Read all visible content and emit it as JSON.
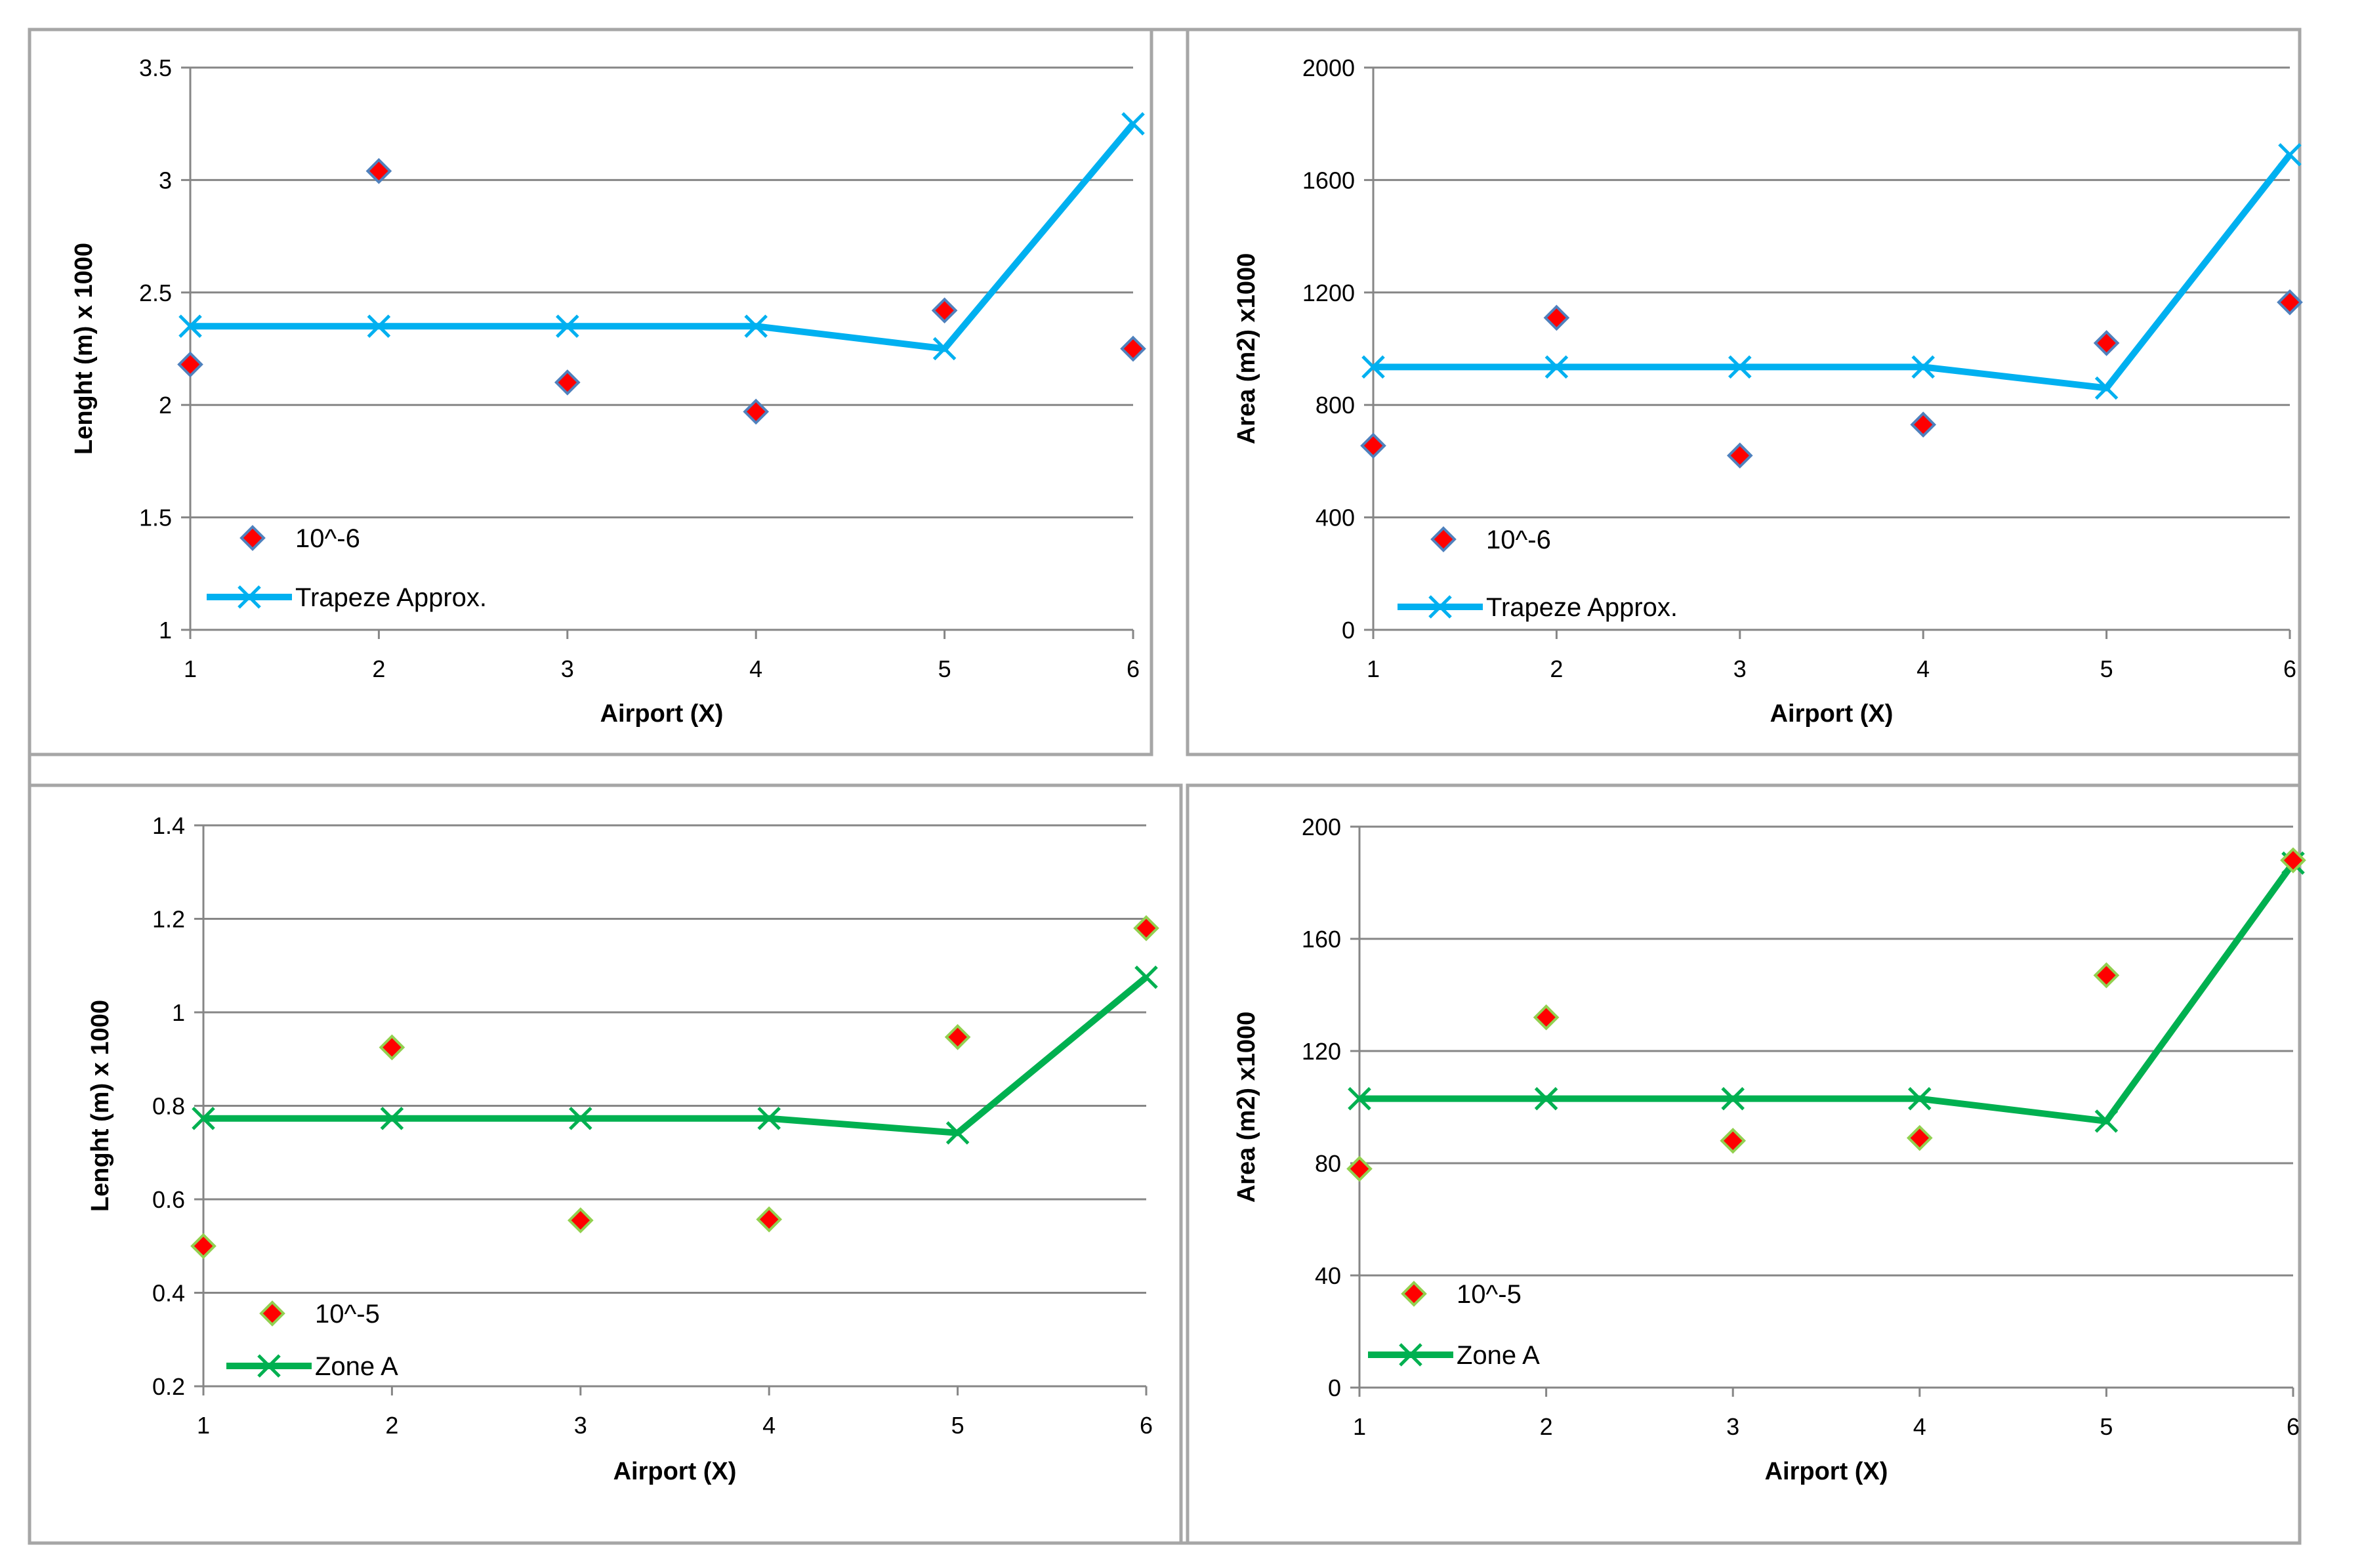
{
  "chart_data": [
    {
      "type": "scatter+line",
      "id": "top-left",
      "xlabel": "Airport (X)",
      "ylabel": "Lenght (m) x 1000",
      "categories": [
        1,
        2,
        3,
        4,
        5,
        6
      ],
      "yticks": [
        "1",
        "1.5",
        "2",
        "2.5",
        "3",
        "3.5"
      ],
      "ylim": [
        1,
        3.5
      ],
      "grid": true,
      "legend_position": "bottom-left",
      "series": [
        {
          "name": "10^-6",
          "kind": "scatter",
          "marker": "diamond",
          "fill": "#ff0000",
          "edge": "#4f81bd",
          "values": [
            2.18,
            3.04,
            2.1,
            1.97,
            2.42,
            2.25
          ]
        },
        {
          "name": "Trapeze Approx.",
          "kind": "line",
          "marker": "x",
          "color": "#00b0f0",
          "values": [
            2.35,
            2.35,
            2.35,
            2.35,
            2.25,
            3.25
          ]
        }
      ]
    },
    {
      "type": "scatter+line",
      "id": "top-right",
      "xlabel": "Airport (X)",
      "ylabel": "Area (m2) x1000",
      "categories": [
        1,
        2,
        3,
        4,
        5,
        6
      ],
      "yticks": [
        "0",
        "400",
        "800",
        "1200",
        "1600",
        "2000"
      ],
      "ylim": [
        0,
        2000
      ],
      "grid": true,
      "legend_position": "bottom-left",
      "series": [
        {
          "name": "10^-6",
          "kind": "scatter",
          "marker": "diamond",
          "fill": "#ff0000",
          "edge": "#4f81bd",
          "values": [
            655,
            1110,
            620,
            730,
            1020,
            1165
          ]
        },
        {
          "name": "Trapeze Approx.",
          "kind": "line",
          "marker": "x",
          "color": "#00b0f0",
          "values": [
            935,
            935,
            935,
            935,
            860,
            1690
          ]
        }
      ]
    },
    {
      "type": "scatter+line",
      "id": "bottom-left",
      "xlabel": "Airport (X)",
      "ylabel": "Lenght (m) x 1000",
      "categories": [
        1,
        2,
        3,
        4,
        5,
        6
      ],
      "yticks": [
        "0.2",
        "0.4",
        "0.6",
        "0.8",
        "1",
        "1.2",
        "1.4"
      ],
      "ylim": [
        0.2,
        1.4
      ],
      "grid": true,
      "legend_position": "bottom-left",
      "series": [
        {
          "name": "10^-5",
          "kind": "scatter",
          "marker": "diamond",
          "fill": "#ff0000",
          "edge": "#92d050",
          "values": [
            0.5,
            0.925,
            0.555,
            0.557,
            0.947,
            1.18
          ]
        },
        {
          "name": "Zone A",
          "kind": "line",
          "marker": "x",
          "color": "#00b050",
          "values": [
            0.773,
            0.773,
            0.773,
            0.773,
            0.742,
            1.075
          ]
        }
      ]
    },
    {
      "type": "scatter+line",
      "id": "bottom-right",
      "xlabel": "Airport (X)",
      "ylabel": "Area (m2) x1000",
      "categories": [
        1,
        2,
        3,
        4,
        5,
        6
      ],
      "yticks": [
        "0",
        "40",
        "80",
        "120",
        "160",
        "200"
      ],
      "ylim": [
        0,
        200
      ],
      "grid": true,
      "legend_position": "bottom-left",
      "series": [
        {
          "name": "10^-5",
          "kind": "scatter",
          "marker": "diamond",
          "fill": "#ff0000",
          "edge": "#92d050",
          "values": [
            78,
            132,
            88,
            89,
            147,
            188
          ]
        },
        {
          "name": "Zone A",
          "kind": "line",
          "marker": "x",
          "color": "#00b050",
          "values": [
            103,
            103,
            103,
            103,
            95,
            187
          ]
        }
      ]
    }
  ]
}
